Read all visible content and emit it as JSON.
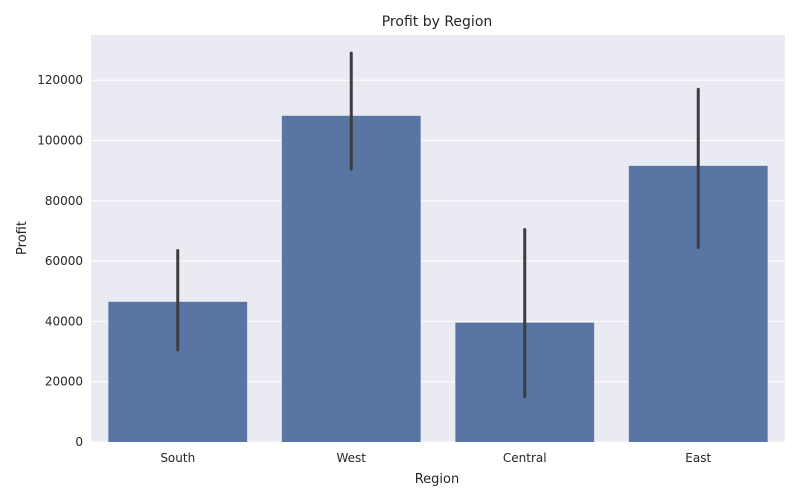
{
  "chart_data": {
    "type": "bar",
    "title": "Profit by Region",
    "xlabel": "Region",
    "ylabel": "Profit",
    "categories": [
      "South",
      "West",
      "Central",
      "East"
    ],
    "values": [
      46500,
      108200,
      39600,
      91600
    ],
    "error_bars": [
      {
        "low": 30500,
        "high": 63500
      },
      {
        "low": 90500,
        "high": 129000
      },
      {
        "low": 15000,
        "high": 70500
      },
      {
        "low": 64500,
        "high": 117000
      }
    ],
    "yticks": [
      0,
      20000,
      40000,
      60000,
      80000,
      100000,
      120000
    ],
    "ylim": [
      0,
      135000
    ],
    "grid": true,
    "colors": {
      "bar": "#5975a4",
      "error_bar": "#3d3d3d",
      "plot_background": "#eaeaf2",
      "grid": "#ffffff"
    }
  }
}
